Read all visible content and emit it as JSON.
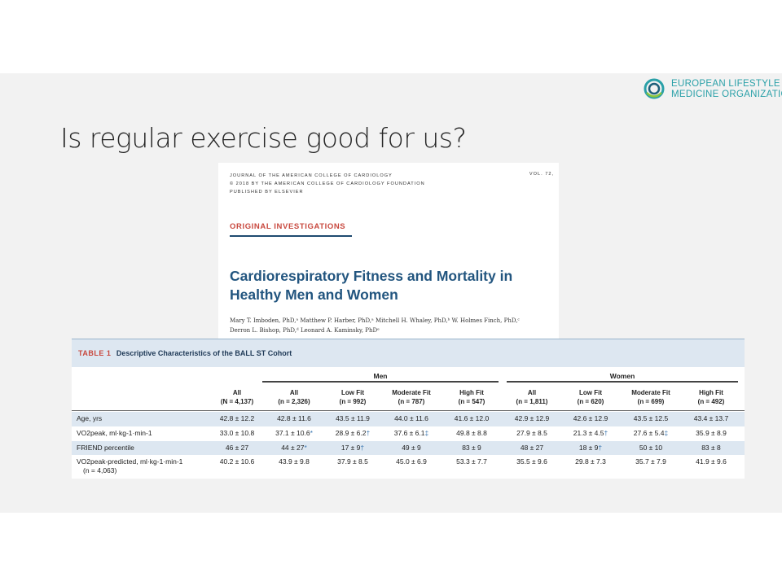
{
  "slide": {
    "title": "Is regular exercise good for us?",
    "logo": {
      "line1": "EUROPEAN LIFESTYLE",
      "line2": "MEDICINE ORGANIZATION",
      "icon": "elmo-swirl-icon",
      "color": "#2aa0a8"
    }
  },
  "article": {
    "journal_lines": [
      "JOURNAL OF THE AMERICAN COLLEGE OF CARDIOLOGY",
      "© 2018 BY THE AMERICAN COLLEGE OF CARDIOLOGY FOUNDATION",
      "PUBLISHED BY ELSEVIER"
    ],
    "volume": "VOL. 72,",
    "section": "ORIGINAL INVESTIGATIONS",
    "title_lines": [
      "Cardiorespiratory Fitness and Mortality in",
      "Healthy Men and Women"
    ],
    "author_lines": [
      "Mary T. Imboden, PhD,ᵃ Matthew P. Harber, PhD,ᵃ Mitchell H. Whaley, PhD,ᵇ W. Holmes Finch, PhD,ᶜ",
      "Derron L. Bishop, PhD,ᵈ Leonard A. Kaminsky, PhDᵉ"
    ]
  },
  "table": {
    "number": "TABLE 1",
    "caption": "Descriptive Characteristics of the BALL ST Cohort",
    "groups": {
      "men": "Men",
      "women": "Women"
    },
    "columns": [
      {
        "name": "All",
        "n": "(N = 4,137)"
      },
      {
        "name": "All",
        "n": "(n = 2,326)"
      },
      {
        "name": "Low Fit",
        "n": "(n = 992)"
      },
      {
        "name": "Moderate Fit",
        "n": "(n = 787)"
      },
      {
        "name": "High Fit",
        "n": "(n = 547)"
      },
      {
        "name": "All",
        "n": "(n = 1,811)"
      },
      {
        "name": "Low Fit",
        "n": "(n = 620)"
      },
      {
        "name": "Moderate Fit",
        "n": "(n = 699)"
      },
      {
        "name": "High Fit",
        "n": "(n = 492)"
      }
    ],
    "rows": [
      {
        "label": "Age, yrs",
        "cells": [
          {
            "v": "42.8 ± 12.2",
            "m": ""
          },
          {
            "v": "42.8 ± 11.6",
            "m": ""
          },
          {
            "v": "43.5 ± 11.9",
            "m": ""
          },
          {
            "v": "44.0 ± 11.6",
            "m": ""
          },
          {
            "v": "41.6 ± 12.0",
            "m": ""
          },
          {
            "v": "42.9 ± 12.9",
            "m": ""
          },
          {
            "v": "42.6 ± 12.9",
            "m": ""
          },
          {
            "v": "43.5 ± 12.5",
            "m": ""
          },
          {
            "v": "43.4 ± 13.7",
            "m": ""
          }
        ]
      },
      {
        "label": "VO2peak, ml·kg-1·min-1",
        "cells": [
          {
            "v": "33.0 ± 10.8",
            "m": ""
          },
          {
            "v": "37.1 ± 10.6",
            "m": "*"
          },
          {
            "v": "28.9 ± 6.2",
            "m": "†"
          },
          {
            "v": "37.6 ± 6.1",
            "m": "‡"
          },
          {
            "v": "49.8 ± 8.8",
            "m": ""
          },
          {
            "v": "27.9 ± 8.5",
            "m": ""
          },
          {
            "v": "21.3 ± 4.5",
            "m": "†"
          },
          {
            "v": "27.6 ± 5.4",
            "m": "‡"
          },
          {
            "v": "35.9 ± 8.9",
            "m": ""
          }
        ]
      },
      {
        "label": "FRIEND percentile",
        "cells": [
          {
            "v": "46 ± 27",
            "m": ""
          },
          {
            "v": "44 ± 27",
            "m": "*"
          },
          {
            "v": "17 ± 9",
            "m": "†"
          },
          {
            "v": "49 ± 9",
            "m": ""
          },
          {
            "v": "83 ± 9",
            "m": ""
          },
          {
            "v": "48 ± 27",
            "m": ""
          },
          {
            "v": "18 ± 9",
            "m": "†"
          },
          {
            "v": "50 ± 10",
            "m": ""
          },
          {
            "v": "83 ± 8",
            "m": ""
          }
        ]
      },
      {
        "label": "VO2peak-predicted, ml·kg-1·min-1",
        "label2": "(n = 4,063)",
        "cells": [
          {
            "v": "40.2 ± 10.6",
            "m": ""
          },
          {
            "v": "43.9 ± 9.8",
            "m": ""
          },
          {
            "v": "37.9 ± 8.5",
            "m": ""
          },
          {
            "v": "45.0 ± 6.9",
            "m": ""
          },
          {
            "v": "53.3 ± 7.7",
            "m": ""
          },
          {
            "v": "35.5 ± 9.6",
            "m": ""
          },
          {
            "v": "29.8 ± 7.3",
            "m": ""
          },
          {
            "v": "35.7 ± 7.9",
            "m": ""
          },
          {
            "v": "41.9 ± 9.6",
            "m": ""
          }
        ]
      }
    ]
  }
}
